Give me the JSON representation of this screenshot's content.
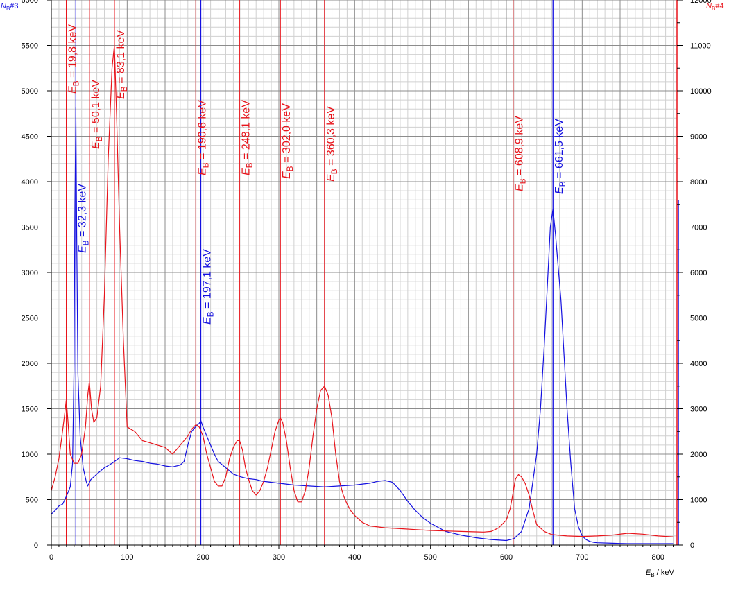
{
  "chart_data": {
    "type": "line",
    "title": "",
    "xlabel": {
      "symbol": "E",
      "sub": "B",
      "unit": " / keV"
    },
    "ylabel_left": {
      "symbol": "N",
      "sub": "B",
      "suffix": "#3"
    },
    "ylabel_right": {
      "symbol": "N",
      "sub": "B",
      "suffix": "#4"
    },
    "xlim": [
      0,
      825
    ],
    "ylim_left": [
      0,
      6000
    ],
    "ylim_right": [
      0,
      12000
    ],
    "x_ticks": [
      0,
      100,
      200,
      300,
      400,
      500,
      600,
      700,
      800
    ],
    "y_left_ticks": [
      0,
      500,
      1000,
      1500,
      2000,
      2500,
      3000,
      3500,
      4000,
      4500,
      5000,
      5500,
      6000
    ],
    "y_right_ticks": [
      0,
      1000,
      2000,
      3000,
      4000,
      5000,
      6000,
      7000,
      8000,
      9000,
      10000,
      11000,
      12000
    ],
    "grid": true,
    "colors": {
      "red": "#e8141b",
      "blue": "#1410e0",
      "grid_major": "#8c8c8c",
      "grid_minor": "#d0d0d0"
    },
    "series": [
      {
        "id": "blue",
        "axis": "left",
        "color": "#1410e0",
        "x": [
          0,
          5,
          10,
          15,
          20,
          25,
          28,
          30,
          31,
          32.3,
          33.5,
          35,
          38,
          42,
          46,
          48,
          52,
          60,
          70,
          80,
          90,
          100,
          110,
          120,
          130,
          140,
          150,
          160,
          170,
          175,
          180,
          185,
          190,
          195,
          197.1,
          200,
          205,
          210,
          215,
          220,
          230,
          240,
          250,
          260,
          270,
          280,
          300,
          320,
          340,
          360,
          380,
          400,
          420,
          430,
          440,
          450,
          460,
          470,
          480,
          490,
          500,
          520,
          540,
          560,
          580,
          600,
          610,
          620,
          630,
          640,
          645,
          650,
          655,
          658,
          661.5,
          665,
          668,
          672,
          676,
          680,
          685,
          690,
          695,
          700,
          705,
          710,
          715,
          720,
          740,
          760,
          780,
          800,
          820
        ],
        "y": [
          340,
          380,
          430,
          450,
          540,
          640,
          900,
          2000,
          3600,
          4820,
          3400,
          1900,
          1200,
          850,
          700,
          650,
          720,
          780,
          850,
          900,
          960,
          950,
          930,
          920,
          900,
          890,
          870,
          860,
          880,
          920,
          1100,
          1250,
          1300,
          1340,
          1370,
          1300,
          1200,
          1100,
          1000,
          920,
          850,
          780,
          750,
          730,
          720,
          700,
          680,
          660,
          650,
          640,
          650,
          660,
          680,
          700,
          710,
          690,
          600,
          480,
          380,
          300,
          240,
          150,
          110,
          80,
          60,
          50,
          70,
          150,
          400,
          1000,
          1500,
          2200,
          3000,
          3500,
          3700,
          3400,
          3100,
          2700,
          2100,
          1500,
          900,
          400,
          200,
          100,
          60,
          40,
          30,
          25,
          20,
          15,
          15,
          15,
          15
        ]
      },
      {
        "id": "red",
        "axis": "right",
        "color": "#e8141b",
        "x": [
          0,
          5,
          10,
          14,
          17,
          19.8,
          22,
          25,
          30,
          35,
          40,
          45,
          48,
          50.1,
          53,
          56,
          60,
          65,
          70,
          75,
          80,
          83.1,
          86,
          90,
          95,
          100,
          110,
          120,
          130,
          140,
          150,
          160,
          170,
          180,
          185,
          190.6,
          195,
          200,
          205,
          210,
          215,
          220,
          225,
          230,
          235,
          240,
          245,
          248.1,
          252,
          256,
          260,
          265,
          270,
          275,
          280,
          285,
          290,
          295,
          300,
          302,
          305,
          310,
          315,
          320,
          325,
          330,
          335,
          340,
          345,
          350,
          355,
          360.3,
          365,
          370,
          375,
          380,
          385,
          390,
          395,
          400,
          410,
          420,
          440,
          460,
          480,
          500,
          520,
          540,
          560,
          570,
          580,
          590,
          600,
          605,
          608.9,
          612,
          616,
          620,
          625,
          630,
          635,
          640,
          650,
          660,
          680,
          700,
          720,
          740,
          760,
          780,
          800,
          820
        ],
        "y": [
          1200,
          1500,
          1900,
          2400,
          2800,
          3200,
          2700,
          2000,
          1800,
          1800,
          2000,
          2600,
          3300,
          3600,
          3000,
          2700,
          2800,
          3500,
          5500,
          8500,
          10500,
          11000,
          9500,
          7000,
          4500,
          2600,
          2500,
          2300,
          2250,
          2200,
          2150,
          2000,
          2200,
          2400,
          2550,
          2650,
          2600,
          2400,
          2000,
          1700,
          1400,
          1300,
          1300,
          1500,
          1900,
          2150,
          2300,
          2300,
          2100,
          1700,
          1450,
          1200,
          1100,
          1200,
          1400,
          1700,
          2100,
          2500,
          2750,
          2800,
          2700,
          2300,
          1700,
          1200,
          950,
          950,
          1200,
          1700,
          2400,
          3000,
          3400,
          3500,
          3300,
          2800,
          2000,
          1400,
          1100,
          900,
          750,
          650,
          500,
          420,
          380,
          360,
          340,
          320,
          310,
          300,
          290,
          285,
          300,
          380,
          550,
          800,
          1150,
          1450,
          1550,
          1500,
          1350,
          1100,
          750,
          450,
          300,
          230,
          200,
          190,
          200,
          220,
          260,
          240,
          200,
          180
        ]
      }
    ],
    "markers": [
      {
        "x": 19.8,
        "color": "#e8141b",
        "value": "19,8 keV"
      },
      {
        "x": 32.3,
        "color": "#1410e0",
        "value": "32,3 keV"
      },
      {
        "x": 50.1,
        "color": "#e8141b",
        "value": "50,1 keV"
      },
      {
        "x": 83.1,
        "color": "#e8141b",
        "value": "83,1 keV"
      },
      {
        "x": 190.6,
        "color": "#e8141b",
        "value": "190,6 keV"
      },
      {
        "x": 197.1,
        "color": "#1410e0",
        "value": "197,1 keV"
      },
      {
        "x": 248.1,
        "color": "#e8141b",
        "value": "248,1 keV"
      },
      {
        "x": 302.0,
        "color": "#e8141b",
        "value": "302,0 keV"
      },
      {
        "x": 360.3,
        "color": "#e8141b",
        "value": "360,3 keV"
      },
      {
        "x": 608.9,
        "color": "#e8141b",
        "value": "608,9 keV"
      },
      {
        "x": 661.5,
        "color": "#1410e0",
        "value": "661,5 keV"
      }
    ],
    "marker_label_prefix": {
      "symbol": "E",
      "sub": "B",
      "eq": " = "
    }
  }
}
